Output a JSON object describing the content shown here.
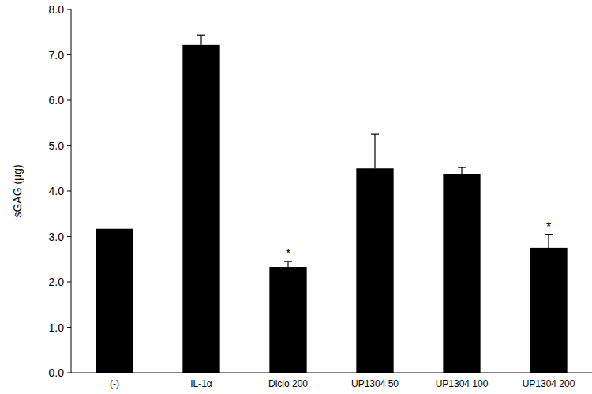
{
  "chart_data": {
    "type": "bar",
    "y_label": "sGAG (μg)",
    "categories": [
      "(-)",
      "IL-1α",
      "Diclo 200",
      "UP1304 50",
      "UP1304 100",
      "UP1304 200"
    ],
    "values": [
      3.17,
      7.22,
      2.33,
      4.5,
      4.37,
      2.75
    ],
    "errors": [
      null,
      0.22,
      0.12,
      0.75,
      0.15,
      0.3
    ],
    "color": "#000000",
    "ylim": [
      0,
      8
    ],
    "yticks": [
      {
        "value": 0,
        "label": "0.0"
      },
      {
        "value": 1,
        "label": "1.0"
      },
      {
        "value": 2,
        "label": "2.0"
      },
      {
        "value": 3,
        "label": "3.0"
      },
      {
        "value": 4,
        "label": "4.0"
      },
      {
        "value": 5,
        "label": "5.0"
      },
      {
        "value": 6,
        "label": "6.0"
      },
      {
        "value": 7,
        "label": "7.0"
      },
      {
        "value": 8,
        "label": "8.0"
      }
    ],
    "grid": false,
    "annotations": [
      {
        "text": "*",
        "category": "Diclo 200"
      },
      {
        "text": "*",
        "category": "UP1304 200"
      }
    ]
  }
}
